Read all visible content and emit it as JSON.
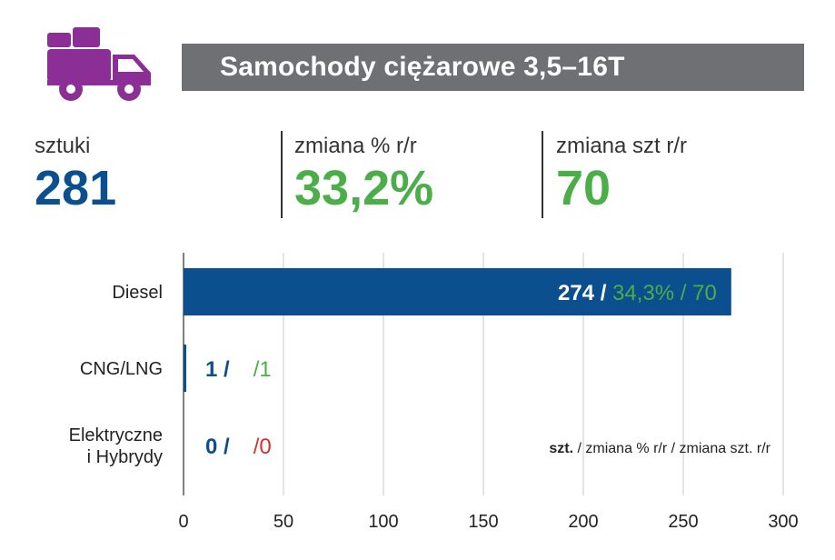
{
  "header": {
    "title": "Samochody ciężarowe 3,5–16T",
    "icon": "truck-icon",
    "icon_color": "#8b2f97"
  },
  "kpis": [
    {
      "label": "sztuki",
      "value": "281",
      "color": "#0c4f8e"
    },
    {
      "label": "zmiana % r/r",
      "value": "33,2%",
      "color": "#4cae48"
    },
    {
      "label": "zmiana szt r/r",
      "value": "70",
      "color": "#4cae48"
    }
  ],
  "colors": {
    "bar": "#0c4f8e",
    "positive": "#4cae48",
    "neutral": "#d32f2f",
    "grid": "#c8c8c8"
  },
  "chart_data": {
    "type": "bar",
    "orientation": "horizontal",
    "categories": [
      "Diesel",
      "CNG/LNG",
      "Elektryczne\ni Hybrydy"
    ],
    "values": [
      274,
      1,
      0
    ],
    "bar_labels": [
      {
        "szt": "274 /",
        "change": " 34,3% / 70"
      },
      {
        "szt": "1 /",
        "change": "/1"
      },
      {
        "szt": "0 /",
        "change": "/0"
      }
    ],
    "xlim": [
      0,
      300
    ],
    "xticks": [
      0,
      50,
      100,
      150,
      200,
      250,
      300
    ],
    "grid": true,
    "legend_note": {
      "bold": "szt.",
      "rest": " / zmiana % r/r / zmiana szt. r/r"
    }
  }
}
